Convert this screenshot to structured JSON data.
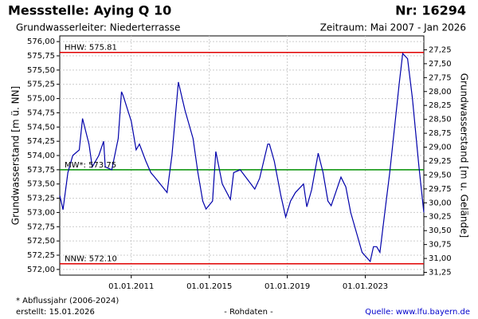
{
  "chart_data": {
    "type": "line",
    "title": "Messstelle: Aying Q 10",
    "number": "Nr: 16294",
    "subtitle": "Grundwasserleiter:  Niederterrasse",
    "period": "Zeitraum: Mai 2007 - Jan 2026",
    "ylabel": "Grundwasserstand [m ü. NN]",
    "y2label": "Grundwasserstand [m u. Gelände]",
    "footnote": "* Abflussjahr (2006-2024)",
    "created": "erstellt:  15.01.2026",
    "status": "- Rohdaten -",
    "source": "Quelle: www.lfu.bayern.de",
    "color": "#0000aa",
    "grid": true,
    "x": [
      "2007-05-01",
      "2007-07-01",
      "2007-10-01",
      "2008-01-01",
      "2008-05-01",
      "2008-07-01",
      "2008-11-01",
      "2009-01-01",
      "2009-05-01",
      "2009-08-01",
      "2009-09-01",
      "2010-01-01",
      "2010-05-01",
      "2010-07-01",
      "2010-08-01",
      "2011-01-01",
      "2011-04-01",
      "2011-06-01",
      "2011-10-01",
      "2012-01-01",
      "2012-04-01",
      "2012-11-01",
      "2013-02-01",
      "2013-06-01",
      "2013-10-01",
      "2014-03-01",
      "2014-06-01",
      "2014-09-01",
      "2014-11-01",
      "2015-03-01",
      "2015-05-01",
      "2015-09-01",
      "2016-02-01",
      "2016-04-01",
      "2016-08-01",
      "2017-05-01",
      "2017-08-01",
      "2018-01-01",
      "2018-02-01",
      "2018-05-01",
      "2018-09-01",
      "2018-12-01",
      "2019-03-01",
      "2019-06-01",
      "2019-11-01",
      "2020-01-01",
      "2020-04-01",
      "2020-08-01",
      "2020-11-01",
      "2021-02-01",
      "2021-04-01",
      "2021-10-01",
      "2022-01-01",
      "2022-04-01",
      "2022-08-01",
      "2022-11-01",
      "2023-04-01",
      "2023-06-01",
      "2023-08-01",
      "2023-10-01",
      "2024-01-01",
      "2024-04-01",
      "2024-07-01",
      "2024-10-01",
      "2024-12-01",
      "2025-03-01",
      "2025-06-01",
      "2025-10-01",
      "2026-01-01"
    ],
    "values": [
      573.3,
      573.05,
      573.7,
      574.0,
      574.1,
      574.65,
      574.2,
      573.8,
      574.0,
      574.25,
      573.8,
      573.75,
      574.3,
      575.12,
      575.05,
      574.6,
      574.1,
      574.2,
      573.9,
      573.7,
      573.6,
      573.35,
      574.0,
      575.29,
      574.8,
      574.3,
      573.7,
      573.2,
      573.06,
      573.2,
      574.07,
      573.5,
      573.23,
      573.7,
      573.75,
      573.41,
      573.6,
      574.2,
      574.2,
      573.9,
      573.3,
      572.92,
      573.2,
      573.35,
      573.5,
      573.1,
      573.4,
      574.04,
      573.7,
      573.2,
      573.12,
      573.62,
      573.45,
      573.0,
      572.6,
      572.3,
      572.14,
      572.4,
      572.4,
      572.3,
      573.0,
      573.7,
      574.5,
      575.3,
      575.79,
      575.7,
      575.0,
      573.8,
      573.0
    ],
    "xlim": [
      "2007-05-01",
      "2026-01-01"
    ],
    "xticks": [
      {
        "value": "2011-01-01",
        "label": "01.01.2011"
      },
      {
        "value": "2015-01-01",
        "label": "01.01.2015"
      },
      {
        "value": "2019-01-01",
        "label": "01.01.2019"
      },
      {
        "value": "2023-01-01",
        "label": "01.01.2023"
      }
    ],
    "ylim": [
      571.9,
      576.1
    ],
    "yticks": [
      {
        "value": 576,
        "label": "576,00"
      },
      {
        "value": 575.75,
        "label": "575,75"
      },
      {
        "value": 575.5,
        "label": "575,50"
      },
      {
        "value": 575.25,
        "label": "575,25"
      },
      {
        "value": 575,
        "label": "575,00"
      },
      {
        "value": 574.75,
        "label": "574,75"
      },
      {
        "value": 574.5,
        "label": "574,50"
      },
      {
        "value": 574.25,
        "label": "574,25"
      },
      {
        "value": 574,
        "label": "574,00"
      },
      {
        "value": 573.75,
        "label": "573,75"
      },
      {
        "value": 573.5,
        "label": "573,50"
      },
      {
        "value": 573.25,
        "label": "573,25"
      },
      {
        "value": 573,
        "label": "573,00"
      },
      {
        "value": 572.75,
        "label": "572,75"
      },
      {
        "value": 572.5,
        "label": "572,50"
      },
      {
        "value": 572.25,
        "label": "572,25"
      },
      {
        "value": 572,
        "label": "572,00"
      }
    ],
    "y2lim": [
      27.0,
      31.3
    ],
    "y2inverted": true,
    "y2ticks": [
      {
        "value": 27.25,
        "label": "27,25"
      },
      {
        "value": 27.5,
        "label": "27,50"
      },
      {
        "value": 27.75,
        "label": "27,75"
      },
      {
        "value": 28,
        "label": "28,00"
      },
      {
        "value": 28.25,
        "label": "28,25"
      },
      {
        "value": 28.5,
        "label": "28,50"
      },
      {
        "value": 28.75,
        "label": "28,75"
      },
      {
        "value": 29,
        "label": "29,00"
      },
      {
        "value": 29.25,
        "label": "29,25"
      },
      {
        "value": 29.5,
        "label": "29,50"
      },
      {
        "value": 29.75,
        "label": "29,75"
      },
      {
        "value": 30,
        "label": "30,00"
      },
      {
        "value": 30.25,
        "label": "30,25"
      },
      {
        "value": 30.5,
        "label": "30,50"
      },
      {
        "value": 30.75,
        "label": "30,75"
      },
      {
        "value": 31,
        "label": "31,00"
      },
      {
        "value": 31.25,
        "label": "31,25"
      }
    ],
    "reference_lines": [
      {
        "label": "HHW: 575.81",
        "value": 575.81,
        "color": "#e00000"
      },
      {
        "label": "MW*: 573.75",
        "value": 573.75,
        "color": "#009000"
      },
      {
        "label": "NNW: 572.10",
        "value": 572.1,
        "color": "#e00000"
      }
    ]
  }
}
